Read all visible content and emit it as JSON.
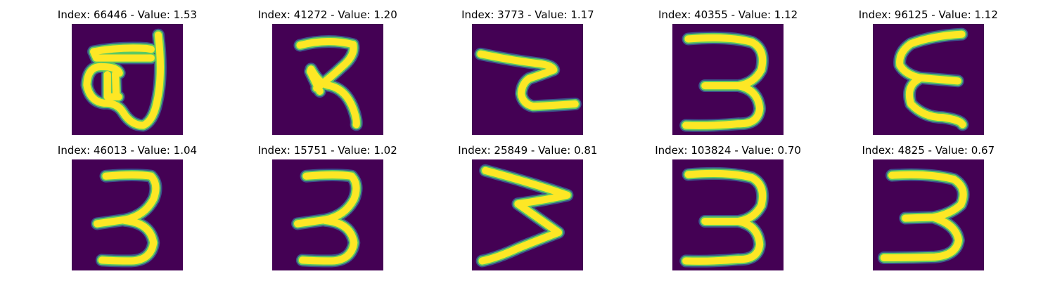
{
  "figure": {
    "background": "#ffffff",
    "image_background": "#440154",
    "stroke_colors": {
      "core": "#fde725",
      "mid": "#5ec962",
      "edge": "#3b528b"
    },
    "panels": [
      {
        "title": "Index: 66446 - Value: 1.53",
        "index": 66446,
        "value": 1.53,
        "glyph": "scribble-7"
      },
      {
        "title": "Index: 41272 - Value: 1.20",
        "index": 41272,
        "value": 1.2,
        "glyph": "digit-3-flat-top"
      },
      {
        "title": "Index: 3773 - Value: 1.17",
        "index": 3773,
        "value": 1.17,
        "glyph": "digit-2-zigzag"
      },
      {
        "title": "Index: 40355 - Value: 1.12",
        "index": 40355,
        "value": 1.12,
        "glyph": "digit-3"
      },
      {
        "title": "Index: 96125 - Value: 1.12",
        "index": 96125,
        "value": 1.12,
        "glyph": "digit-3-reversed"
      },
      {
        "title": "Index: 46013 - Value: 1.04",
        "index": 46013,
        "value": 1.04,
        "glyph": "digit-3-narrow"
      },
      {
        "title": "Index: 15751 - Value: 1.02",
        "index": 15751,
        "value": 1.02,
        "glyph": "digit-3-narrow"
      },
      {
        "title": "Index: 25849 - Value: 0.81",
        "index": 25849,
        "value": 0.81,
        "glyph": "digit-3-zigzag"
      },
      {
        "title": "Index: 103824 - Value: 0.70",
        "index": 103824,
        "value": 0.7,
        "glyph": "digit-3"
      },
      {
        "title": "Index: 4825 - Value: 0.67",
        "index": 4825,
        "value": 0.67,
        "glyph": "digit-3-bold"
      }
    ]
  }
}
